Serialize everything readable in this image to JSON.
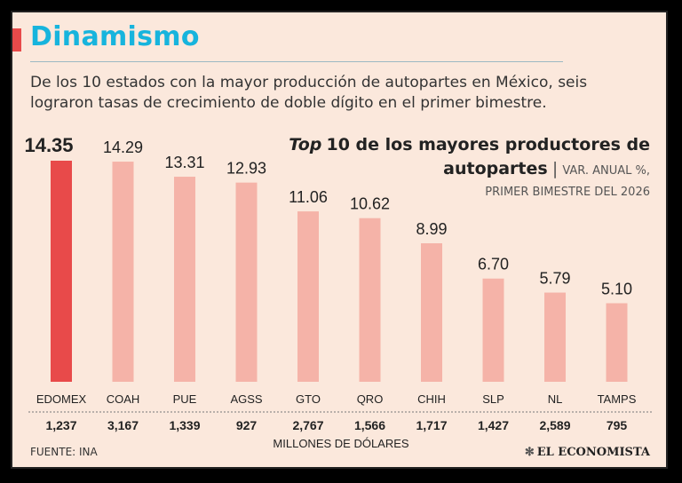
{
  "header": {
    "title": "Dinamismo",
    "subtitle": "De los 10 estados con la mayor producción de autopartes en México, seis lograron tasas de crecimiento de doble dígito en el primer bimestre."
  },
  "chart_title": {
    "top_word": "Top",
    "main": "10 de los mayores productores de autopartes",
    "separator": "|",
    "unit": "VAR. ANUAL %,",
    "unit_line2": "PRIMER BIMESTRE DEL 2026"
  },
  "colors": {
    "background": "#fbe8dc",
    "highlight_bar": "#e84a4a",
    "bar": "#f5b3a8",
    "title": "#17b4dd"
  },
  "chart_data": {
    "type": "bar",
    "categories": [
      "EDOMEX",
      "COAH",
      "PUE",
      "AGSS",
      "GTO",
      "QRO",
      "CHIH",
      "SLP",
      "NL",
      "TAMPS"
    ],
    "values": [
      14.35,
      14.29,
      13.31,
      12.93,
      11.06,
      10.62,
      8.99,
      6.7,
      5.79,
      5.1
    ],
    "value_labels": [
      "14.35",
      "14.29",
      "13.31",
      "12.93",
      "11.06",
      "10.62",
      "8.99",
      "6.70",
      "5.79",
      "5.10"
    ],
    "secondary_values": [
      "1,237",
      "3,167",
      "1,339",
      "927",
      "2,767",
      "1,566",
      "1,717",
      "1,427",
      "2,589",
      "795"
    ],
    "secondary_label": "MILLONES DE DÓLARES",
    "highlight_index": 0,
    "ylim": [
      0,
      14.35
    ],
    "grid": false
  },
  "footer": {
    "source": "FUENTE: INA",
    "logo": "EL ECONOMISTA"
  }
}
